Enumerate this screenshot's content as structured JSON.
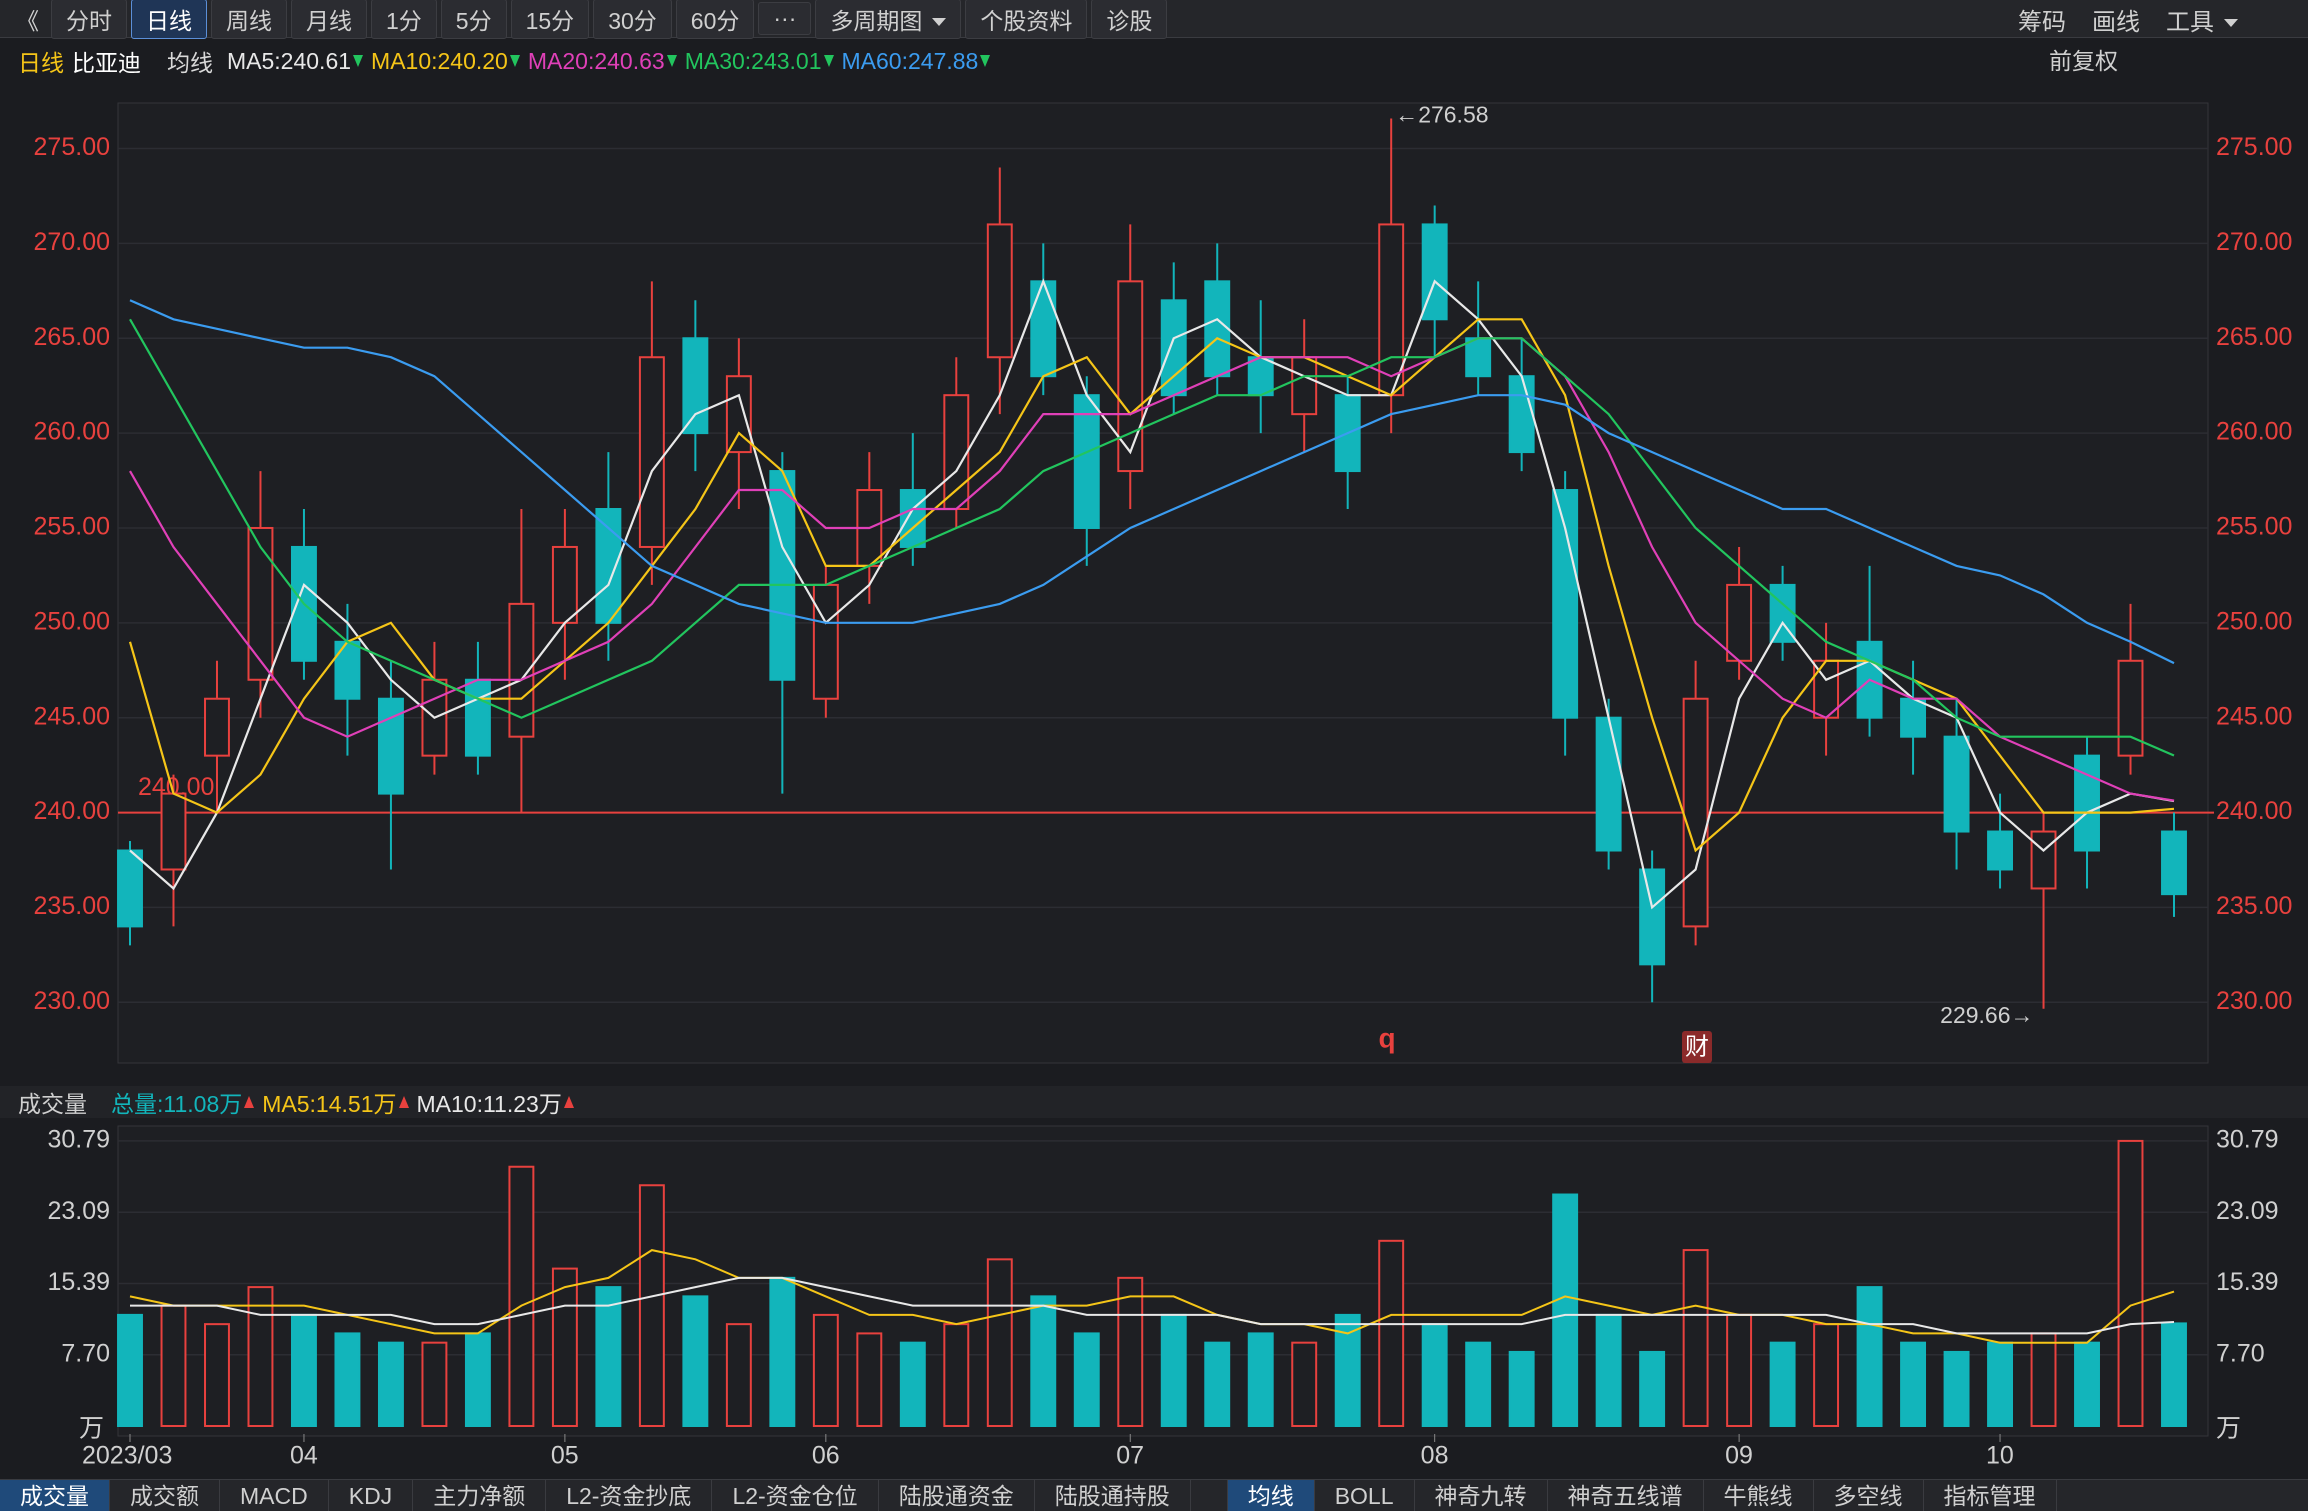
{
  "toolbar": {
    "left": [
      "《",
      "分时",
      "日线",
      "周线",
      "月线",
      "1分",
      "5分",
      "15分",
      "30分",
      "60分",
      "···",
      "多周期图",
      "个股资料",
      "诊股"
    ],
    "right": [
      "筹码",
      "画线",
      "工具"
    ]
  },
  "header": {
    "period": "日线",
    "stock": "比亚迪",
    "ma_title": "均线",
    "adjust": "前复权"
  },
  "chart_data": [
    {
      "type": "candlestick",
      "categories": [
        "2023/03",
        null,
        null,
        null,
        "04",
        null,
        null,
        null,
        null,
        null,
        "05",
        null,
        null,
        null,
        null,
        null,
        "06",
        null,
        null,
        null,
        null,
        null,
        null,
        "07",
        null,
        null,
        null,
        null,
        null,
        null,
        "08",
        null,
        null,
        null,
        null,
        null,
        null,
        "09",
        null,
        null,
        null,
        null,
        null,
        "10",
        null,
        null,
        null,
        null
      ],
      "open": [
        238,
        237,
        243,
        247,
        254,
        249,
        246,
        243,
        247,
        244,
        250,
        256,
        254,
        265,
        259,
        258,
        246,
        253,
        257,
        256,
        264,
        268,
        262,
        258,
        267,
        268,
        264,
        261,
        262,
        262,
        271,
        265,
        263,
        257,
        245,
        237,
        234,
        248,
        252,
        245,
        249,
        246,
        244,
        239,
        236,
        243,
        243,
        239
      ],
      "high": [
        238.5,
        242,
        248,
        258,
        256,
        251,
        248,
        249,
        249,
        256,
        256,
        259,
        268,
        267,
        265,
        259,
        253,
        259,
        260,
        264,
        274,
        270,
        263,
        271,
        269,
        270,
        267,
        266,
        263,
        276.58,
        272,
        268,
        265,
        258,
        246,
        238,
        248,
        254,
        253,
        250,
        253,
        248,
        246,
        241,
        240,
        244,
        251,
        240
      ],
      "low": [
        233,
        234,
        240,
        245,
        247,
        243,
        237,
        242,
        242,
        240,
        247,
        248,
        252,
        258,
        256,
        241,
        245,
        251,
        253,
        255,
        261,
        262,
        253,
        256,
        261,
        262,
        260,
        259,
        256,
        260,
        264,
        262,
        258,
        243,
        237,
        230,
        233,
        247,
        248,
        243,
        244,
        242,
        237,
        236,
        229.66,
        236,
        242,
        234.5
      ],
      "close": [
        234,
        241,
        246,
        255,
        248,
        246,
        241,
        247,
        243,
        251,
        254,
        250,
        264,
        260,
        263,
        247,
        252,
        257,
        254,
        262,
        271,
        263,
        255,
        268,
        262,
        263,
        262,
        264,
        258,
        271,
        266,
        263,
        259,
        245,
        238,
        232,
        246,
        252,
        249,
        248,
        245,
        244,
        239,
        237,
        239,
        238,
        248,
        235.7
      ],
      "up_color": "#e8413e",
      "down_color": "#12b5bb",
      "ylim": [
        226.8,
        277.4
      ],
      "yticks": [
        {
          "value": 275,
          "label": "275.00"
        },
        {
          "value": 270,
          "label": "270.00"
        },
        {
          "value": 265,
          "label": "265.00"
        },
        {
          "value": 260,
          "label": "260.00"
        },
        {
          "value": 255,
          "label": "255.00"
        },
        {
          "value": 250,
          "label": "250.00"
        },
        {
          "value": 245,
          "label": "245.00"
        },
        {
          "value": 240,
          "label": "240.00"
        },
        {
          "value": 235,
          "label": "235.00"
        },
        {
          "value": 230,
          "label": "230.00"
        }
      ],
      "grid": true,
      "reference_line": {
        "value": 240,
        "label": "240.00",
        "color": "#e8413e"
      },
      "high_label": "←276.58",
      "low_label": "229.66→",
      "events": [
        "q",
        "财"
      ],
      "series": [
        {
          "name": "MA5",
          "label": "MA5:240.61",
          "color": "#e8e8e8",
          "values": [
            238,
            236,
            240,
            246,
            252,
            250,
            247,
            245,
            246,
            247,
            250,
            252,
            258,
            261,
            262,
            254,
            250,
            252,
            256,
            258,
            262,
            268,
            262,
            259,
            265,
            266,
            264,
            263,
            262,
            262,
            268,
            266,
            263,
            255,
            245,
            235,
            237,
            246,
            250,
            247,
            248,
            246,
            245,
            240,
            238,
            240,
            241,
            240.61
          ]
        },
        {
          "name": "MA10",
          "label": "MA10:240.20",
          "color": "#f5c518",
          "values": [
            249,
            241,
            240,
            242,
            246,
            249,
            250,
            247,
            246,
            246,
            248,
            250,
            253,
            256,
            260,
            258,
            253,
            253,
            255,
            257,
            259,
            263,
            264,
            261,
            263,
            265,
            264,
            264,
            263,
            262,
            264,
            266,
            266,
            262,
            253,
            245,
            238,
            240,
            245,
            248,
            248,
            247,
            246,
            243,
            240,
            240,
            240,
            240.2
          ]
        },
        {
          "name": "MA20",
          "label": "MA20:240.63",
          "color": "#e040b8",
          "values": [
            258,
            254,
            251,
            248,
            245,
            244,
            245,
            246,
            247,
            247,
            248,
            249,
            251,
            254,
            257,
            257,
            255,
            255,
            256,
            256,
            258,
            261,
            261,
            261,
            262,
            263,
            264,
            264,
            264,
            263,
            264,
            265,
            265,
            263,
            259,
            254,
            250,
            248,
            246,
            245,
            247,
            246,
            246,
            244,
            243,
            242,
            241,
            240.63
          ]
        },
        {
          "name": "MA30",
          "label": "MA30:243.01",
          "color": "#22c55e",
          "values": [
            266,
            262,
            258,
            254,
            251,
            249,
            248,
            247,
            246,
            245,
            246,
            247,
            248,
            250,
            252,
            252,
            252,
            253,
            254,
            255,
            256,
            258,
            259,
            260,
            261,
            262,
            262,
            263,
            263,
            264,
            264,
            265,
            265,
            263,
            261,
            258,
            255,
            253,
            251,
            249,
            248,
            247,
            245,
            244,
            244,
            244,
            244,
            243.01
          ]
        },
        {
          "name": "MA60",
          "label": "MA60:247.88",
          "color": "#3b9cf0",
          "values": [
            267,
            266,
            265.5,
            265,
            264.5,
            264.5,
            264,
            263,
            261,
            259,
            257,
            255,
            253,
            252,
            251,
            250.5,
            250,
            250,
            250,
            250.5,
            251,
            252,
            253.5,
            255,
            256,
            257,
            258,
            259,
            260,
            261,
            261.5,
            262,
            262,
            261.5,
            260,
            259,
            258,
            257,
            256,
            256,
            255,
            254,
            253,
            252.5,
            251.5,
            250,
            249,
            247.88
          ]
        }
      ]
    },
    {
      "type": "bar",
      "title": "成交量",
      "unit": "万",
      "values": [
        12,
        13,
        11,
        15,
        12,
        10,
        9,
        9,
        10,
        28,
        17,
        15,
        26,
        14,
        11,
        16,
        12,
        10,
        9,
        11,
        18,
        14,
        10,
        16,
        12,
        9,
        10,
        9,
        12,
        20,
        11,
        9,
        8,
        25,
        12,
        8,
        19,
        12,
        9,
        11,
        15,
        9,
        8,
        9,
        10,
        9,
        30.79,
        11.08
      ],
      "total_label": "总量:11.08万",
      "ylim": [
        0,
        32.4
      ],
      "yticks": [
        30.79,
        23.09,
        15.39,
        {
          "value": 7.7,
          "label": "7.70"
        }
      ],
      "grid": true,
      "series": [
        {
          "name": "MA5",
          "label": "MA5:14.51万",
          "color": "#f5c518",
          "values": [
            14,
            13,
            13,
            13,
            13,
            12,
            11,
            10,
            10,
            13,
            15,
            16,
            19,
            18,
            16,
            16,
            14,
            12,
            12,
            11,
            12,
            13,
            13,
            14,
            14,
            12,
            11,
            11,
            10,
            12,
            12,
            12,
            12,
            14,
            13,
            12,
            13,
            12,
            12,
            11,
            11,
            10,
            10,
            9,
            9,
            9,
            13,
            14.51
          ]
        },
        {
          "name": "MA10",
          "label": "MA10:11.23万",
          "color": "#e8e8e8",
          "values": [
            13,
            13,
            13,
            12,
            12,
            12,
            12,
            11,
            11,
            12,
            13,
            13,
            14,
            15,
            16,
            16,
            15,
            14,
            13,
            13,
            13,
            13,
            12,
            12,
            12,
            12,
            11,
            11,
            11,
            11,
            11,
            11,
            11,
            12,
            12,
            12,
            12,
            12,
            12,
            12,
            11,
            11,
            10,
            10,
            10,
            10,
            11,
            11.23
          ]
        }
      ]
    }
  ],
  "tabs": {
    "left": [
      "成交量",
      "成交额",
      "MACD",
      "KDJ",
      "主力净额",
      "L2-资金抄底",
      "L2-资金仓位",
      "陆股通资金",
      "陆股通持股"
    ],
    "right": [
      "均线",
      "BOLL",
      "神奇九转",
      "神奇五线谱",
      "牛熊线",
      "多空线",
      "指标管理"
    ]
  }
}
